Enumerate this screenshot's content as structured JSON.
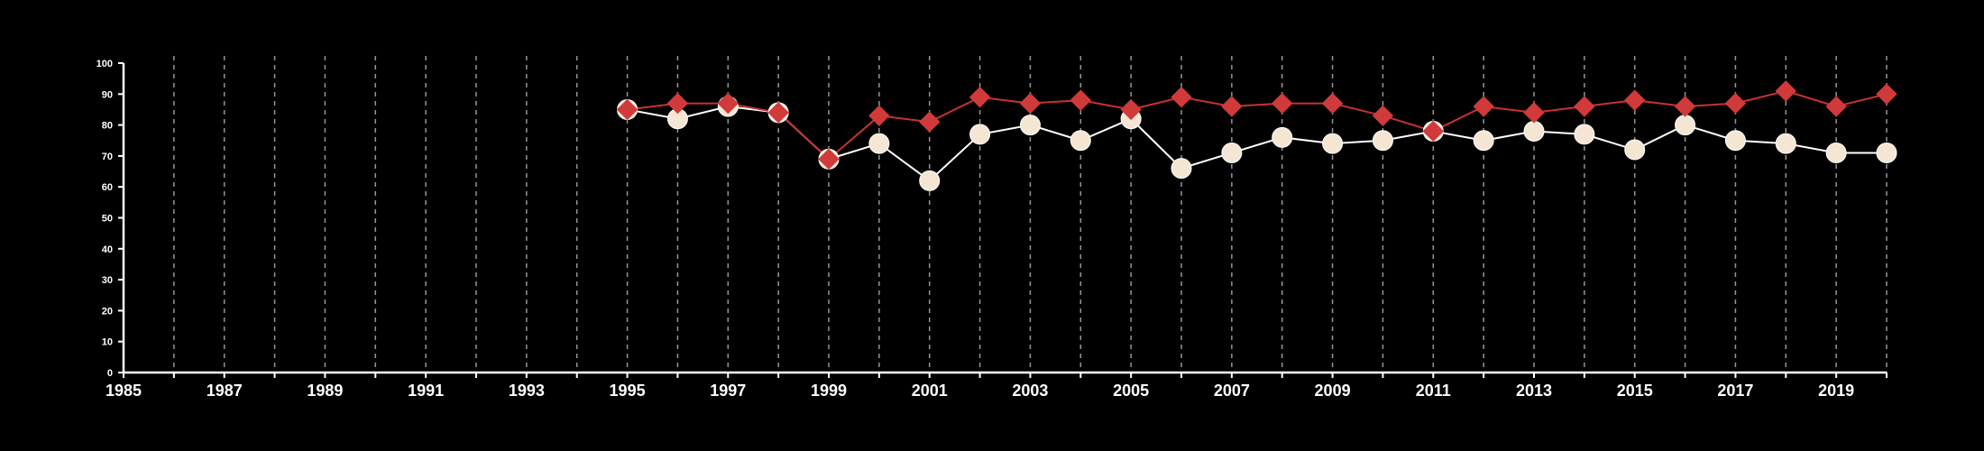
{
  "chart_data": {
    "type": "line",
    "title": "",
    "xlabel": "",
    "ylabel": "",
    "xlim": [
      1985,
      2020
    ],
    "ylim": [
      0,
      100
    ],
    "x_ticks": [
      1985,
      1987,
      1989,
      1991,
      1993,
      1995,
      1997,
      1999,
      2001,
      2003,
      2005,
      2007,
      2009,
      2011,
      2013,
      2015,
      2017,
      2019
    ],
    "y_ticks": [
      0,
      10,
      20,
      30,
      40,
      50,
      60,
      70,
      80,
      90,
      100
    ],
    "x_grid_years": [
      1986,
      1987,
      1988,
      1989,
      1990,
      1991,
      1992,
      1993,
      1994,
      1995,
      1996,
      1997,
      1998,
      1999,
      2000,
      2001,
      2002,
      2003,
      2004,
      2005,
      2006,
      2007,
      2008,
      2009,
      2010,
      2011,
      2012,
      2013,
      2014,
      2015,
      2016,
      2017,
      2018,
      2019,
      2020
    ],
    "grid": "vertical-dashed",
    "x": [
      1995,
      1996,
      1997,
      1998,
      1999,
      2000,
      2001,
      2002,
      2003,
      2004,
      2005,
      2006,
      2007,
      2008,
      2009,
      2010,
      2011,
      2012,
      2013,
      2014,
      2015,
      2016,
      2017,
      2018,
      2019,
      2020
    ],
    "series": [
      {
        "marker": "circle",
        "color": "#f5e6d3",
        "line_color": "#ffffff",
        "values": [
          85,
          82,
          86,
          84,
          69,
          74,
          62,
          77,
          80,
          75,
          82,
          66,
          71,
          76,
          74,
          75,
          78,
          75,
          78,
          77,
          72,
          80,
          75,
          74,
          71,
          71
        ]
      },
      {
        "marker": "diamond",
        "color": "#d13a3a",
        "line_color": "#c83232",
        "values": [
          85,
          87,
          87,
          84,
          69,
          83,
          81,
          89,
          87,
          88,
          85,
          89,
          86,
          87,
          87,
          83,
          78,
          86,
          84,
          86,
          88,
          86,
          87,
          91,
          86,
          90
        ]
      }
    ]
  }
}
